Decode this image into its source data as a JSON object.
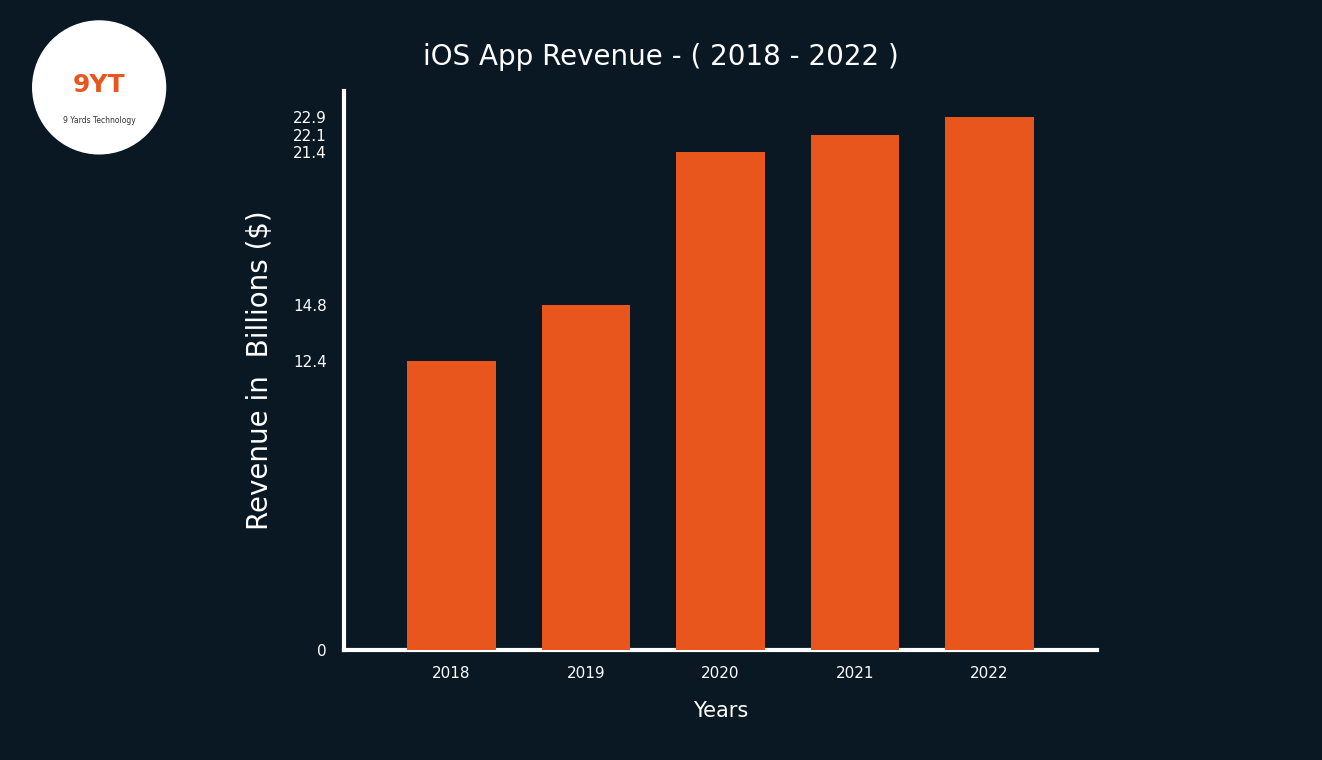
{
  "chart_data": {
    "type": "bar",
    "title": "iOS App Revenue - ( 2018 - 2022 )",
    "x_label": "Years",
    "y_label": "Revenue in  Billions ($)",
    "categories": [
      "2018",
      "2019",
      "2020",
      "2021",
      "2022"
    ],
    "values": [
      12.4,
      14.8,
      21.4,
      22.1,
      22.9
    ],
    "color": "#e8561e",
    "ylim": [
      0,
      24
    ],
    "yticks": [
      0,
      12.4,
      14.8,
      21.4,
      22.1,
      22.9
    ],
    "grid": false,
    "annotations": [
      "9YT",
      "9 Yards Technology"
    ]
  }
}
